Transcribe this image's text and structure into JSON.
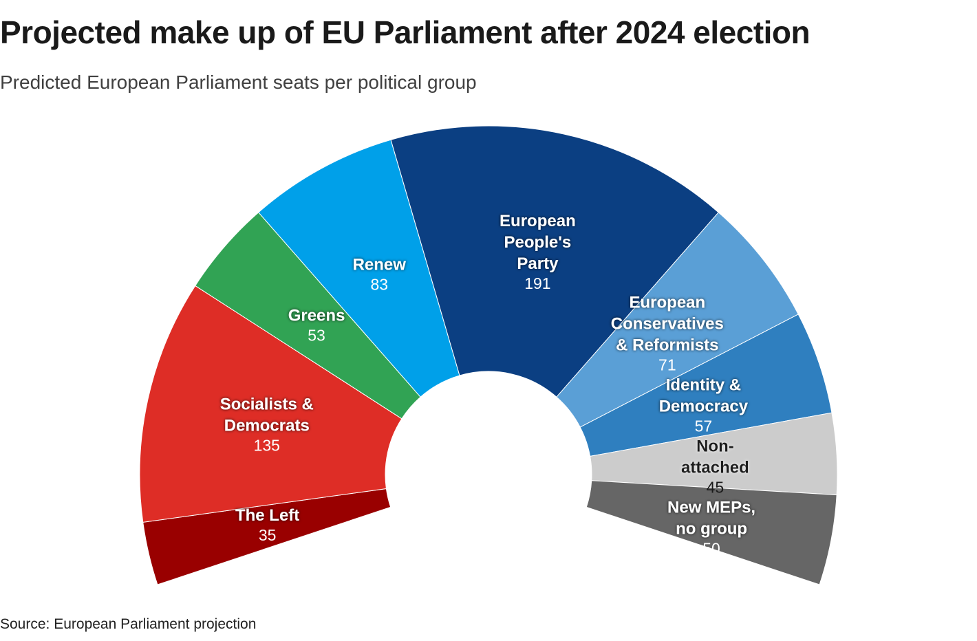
{
  "chart_data": {
    "type": "pie",
    "variant": "semicircle-donut (parliament)",
    "title": "Projected make up of EU Parliament after 2024 election",
    "subtitle": "Predicted European Parliament seats per political group",
    "source": "Source: European Parliament projection",
    "categories": [
      "The Left",
      "Socialists & Democrats",
      "Greens",
      "Renew",
      "European People's Party",
      "European Conservatives & Reformists",
      "Identity & Democracy",
      "Non-attached",
      "New MEPs, no group"
    ],
    "label_lines": [
      [
        "The Left"
      ],
      [
        "Socialists &",
        "Democrats"
      ],
      [
        "Greens"
      ],
      [
        "Renew"
      ],
      [
        "European",
        "People's",
        "Party"
      ],
      [
        "European",
        "Conservatives",
        "& Reformists"
      ],
      [
        "Identity &",
        "Democracy"
      ],
      [
        "Non-",
        "attached"
      ],
      [
        "New MEPs,",
        "no group"
      ]
    ],
    "values": [
      35,
      135,
      53,
      83,
      191,
      71,
      57,
      45,
      50
    ],
    "colors": [
      "#990000",
      "#de2d26",
      "#31a354",
      "#00a0e9",
      "#0b3f82",
      "#5a9fd6",
      "#2f7fbf",
      "#cccccc",
      "#666666"
    ],
    "label_text_colors": [
      "#ffffff",
      "#ffffff",
      "#ffffff",
      "#ffffff",
      "#ffffff",
      "#ffffff",
      "#ffffff",
      "#1a1a1a",
      "#ffffff"
    ]
  }
}
